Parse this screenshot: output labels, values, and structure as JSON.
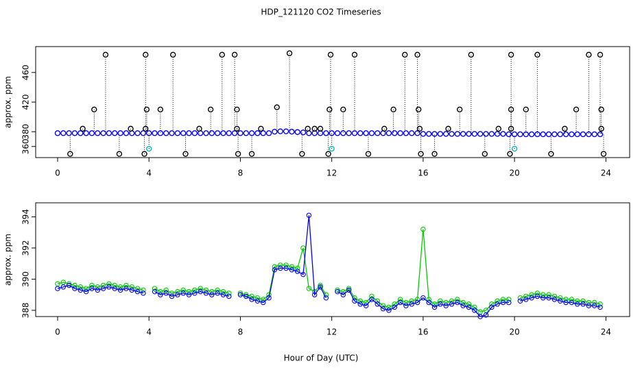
{
  "chart_data": [
    {
      "type": "scatter",
      "title": "HDP_121120  CO2 Timeseries",
      "y_label": "approx. ppm",
      "xlim": [
        -0.96,
        25.04
      ],
      "xticks": [
        0,
        4,
        8,
        12,
        16,
        20,
        24
      ],
      "ylim": [
        345,
        495
      ],
      "yticks": [
        360,
        380,
        420,
        460
      ],
      "series": [
        {
          "color": "#0000ff",
          "x": [
            0,
            0.25,
            0.5,
            0.75,
            1,
            1.25,
            1.5,
            1.75,
            2,
            2.25,
            2.5,
            2.75,
            3,
            3.25,
            3.5,
            3.75,
            4,
            4.25,
            4.5,
            4.75,
            5,
            5.25,
            5.5,
            5.75,
            6,
            6.25,
            6.5,
            6.75,
            7,
            7.25,
            7.5,
            7.75,
            8,
            8.25,
            8.5,
            8.75,
            9,
            9.25,
            9.5,
            9.75,
            10,
            10.25,
            10.5,
            10.75,
            11,
            11.25,
            11.5,
            11.75,
            12,
            12.25,
            12.5,
            12.75,
            13,
            13.25,
            13.5,
            13.75,
            14,
            14.25,
            14.5,
            14.75,
            15,
            15.25,
            15.5,
            15.75,
            16,
            16.25,
            16.5,
            16.75,
            17,
            17.25,
            17.5,
            17.75,
            18,
            18.25,
            18.5,
            18.75,
            19,
            19.25,
            19.5,
            19.75,
            20,
            20.25,
            20.5,
            20.75,
            21,
            21.25,
            21.5,
            21.75,
            22,
            22.25,
            22.5,
            22.75,
            23,
            23.25,
            23.5,
            23.75
          ],
          "values": [
            378,
            378,
            378,
            378,
            378,
            378,
            378,
            378,
            378,
            378,
            378,
            378,
            378,
            378,
            378,
            378,
            378,
            378,
            378,
            378,
            378,
            378,
            378,
            378,
            378,
            378,
            378,
            378,
            378,
            378,
            378,
            378,
            378,
            378,
            378,
            378,
            378,
            378,
            380,
            380.5,
            380.5,
            380,
            379.5,
            379,
            378,
            378,
            378,
            378,
            378,
            378,
            378,
            378,
            378,
            378,
            378,
            378,
            378,
            378,
            378,
            378,
            378,
            378,
            378,
            378,
            377,
            377,
            377,
            377,
            377,
            377,
            377,
            377,
            377,
            377,
            377,
            377,
            377,
            377,
            377,
            376.5,
            376.5,
            376.5,
            376.5,
            376.5,
            376.5,
            376.5,
            376.5,
            376.5,
            376.5,
            376.5,
            376.5,
            376.5,
            376.5,
            376.5,
            376.5,
            376.5
          ]
        },
        {
          "color": "#000000",
          "x": [
            2.1,
            3.85,
            5.05,
            7.2,
            7.75,
            10.15,
            11.95,
            13.0,
            15.2,
            15.75,
            18.1,
            19.85,
            21.0,
            23.25,
            23.75,
            1.6,
            3.9,
            4.5,
            6.7,
            7.85,
            9.6,
            11.9,
            12.5,
            14.7,
            15.8,
            17.6,
            19.85,
            20.5,
            22.7,
            23.8,
            0.55,
            2.7,
            3.8,
            5.6,
            7.9,
            8.5,
            10.7,
            11.85,
            13.6,
            15.9,
            16.5,
            18.7,
            19.8,
            21.6,
            23.9,
            1.1,
            3.2,
            3.85,
            6.2,
            7.85,
            8.9,
            10.95,
            11.25,
            11.5,
            14.3,
            15.85,
            17.1,
            19.3,
            19.85,
            22.2,
            23.8
          ],
          "values": [
            484,
            484,
            484,
            484,
            484,
            486,
            484,
            484,
            484,
            484,
            484,
            484,
            484,
            484,
            484,
            410,
            410,
            410,
            410,
            410,
            413,
            410,
            410,
            410,
            410,
            410,
            410,
            410,
            410,
            410,
            350,
            350,
            350,
            350,
            350,
            350,
            350,
            350,
            350,
            350,
            350,
            350,
            350,
            350,
            350,
            384,
            384,
            384,
            384,
            384,
            384,
            384,
            384,
            384,
            384,
            384,
            384,
            384,
            384,
            384,
            384
          ]
        },
        {
          "color": "#00bbbb",
          "x": [
            4.0,
            12.0,
            20.0
          ],
          "values": [
            357,
            357,
            357
          ]
        }
      ]
    },
    {
      "type": "line",
      "y_label": "approx. ppm",
      "x_label": "Hour of Day (UTC)",
      "xlim": [
        -0.96,
        25.04
      ],
      "xticks": [
        0,
        4,
        8,
        12,
        16,
        20,
        24
      ],
      "ylim": [
        387.6,
        394.9
      ],
      "yticks": [
        388,
        390,
        392,
        394
      ],
      "x": [
        0,
        0.25,
        0.5,
        0.75,
        1,
        1.25,
        1.5,
        1.75,
        2,
        2.25,
        2.5,
        2.75,
        3,
        3.25,
        3.5,
        3.75,
        4,
        4.25,
        4.5,
        4.75,
        5,
        5.25,
        5.5,
        5.75,
        6,
        6.25,
        6.5,
        6.75,
        7,
        7.25,
        7.5,
        7.75,
        8,
        8.25,
        8.5,
        8.75,
        9,
        9.25,
        9.5,
        9.75,
        10,
        10.25,
        10.5,
        10.75,
        11,
        11.25,
        11.5,
        11.75,
        12,
        12.25,
        12.5,
        12.75,
        13,
        13.25,
        13.5,
        13.75,
        14,
        14.25,
        14.5,
        14.75,
        15,
        15.25,
        15.5,
        15.75,
        16,
        16.25,
        16.5,
        16.75,
        17,
        17.25,
        17.5,
        17.75,
        18,
        18.25,
        18.5,
        18.75,
        19,
        19.25,
        19.5,
        19.75,
        20,
        20.25,
        20.5,
        20.75,
        21,
        21.25,
        21.5,
        21.75,
        22,
        22.25,
        22.5,
        22.75,
        23,
        23.25,
        23.5,
        23.75
      ],
      "series": [
        {
          "color": "#00cc00",
          "values": [
            389.7,
            389.8,
            389.7,
            389.6,
            389.5,
            389.4,
            389.6,
            389.5,
            389.6,
            389.7,
            389.6,
            389.5,
            389.6,
            389.5,
            389.4,
            389.3,
            null,
            389.4,
            389.2,
            389.3,
            389.1,
            389.2,
            389.3,
            389.2,
            389.3,
            389.4,
            389.3,
            389.2,
            389.3,
            389.2,
            389.1,
            null,
            389.1,
            389.0,
            388.9,
            388.8,
            388.7,
            389.0,
            390.8,
            390.9,
            390.9,
            390.8,
            390.7,
            392.0,
            389.4,
            389.2,
            389.6,
            389.0,
            null,
            389.3,
            389.2,
            389.4,
            388.8,
            388.6,
            388.5,
            388.9,
            388.6,
            388.3,
            388.2,
            388.4,
            388.7,
            388.5,
            388.6,
            388.7,
            393.2,
            388.7,
            388.4,
            388.6,
            388.5,
            388.6,
            388.7,
            388.5,
            388.4,
            388.2,
            387.9,
            388.0,
            388.4,
            388.6,
            388.7,
            388.7,
            null,
            388.8,
            388.9,
            389.0,
            389.1,
            389.0,
            389.0,
            388.9,
            388.8,
            388.7,
            388.7,
            388.6,
            388.6,
            388.5,
            388.5,
            388.4
          ]
        },
        {
          "color": "#0000ff",
          "values": [
            389.4,
            389.5,
            389.6,
            389.4,
            389.3,
            389.2,
            389.4,
            389.3,
            389.4,
            389.5,
            389.4,
            389.3,
            389.4,
            389.3,
            389.2,
            389.1,
            null,
            389.2,
            389.0,
            389.1,
            388.9,
            389.0,
            389.1,
            389.0,
            389.1,
            389.2,
            389.1,
            389.0,
            389.1,
            389.0,
            388.9,
            null,
            389.0,
            388.9,
            388.7,
            388.6,
            388.5,
            388.8,
            390.6,
            390.7,
            390.7,
            390.6,
            390.5,
            390.3,
            394.1,
            389.0,
            389.5,
            388.8,
            null,
            389.2,
            389.0,
            389.3,
            388.6,
            388.4,
            388.3,
            388.7,
            388.4,
            388.1,
            388.0,
            388.2,
            388.5,
            388.3,
            388.4,
            388.5,
            388.8,
            388.5,
            388.2,
            388.4,
            388.3,
            388.4,
            388.5,
            388.3,
            388.2,
            388.0,
            387.6,
            387.7,
            388.2,
            388.4,
            388.5,
            388.5,
            null,
            388.6,
            388.7,
            388.8,
            388.9,
            388.8,
            388.8,
            388.7,
            388.6,
            388.5,
            388.5,
            388.4,
            388.4,
            388.3,
            388.3,
            388.2
          ]
        }
      ]
    }
  ]
}
